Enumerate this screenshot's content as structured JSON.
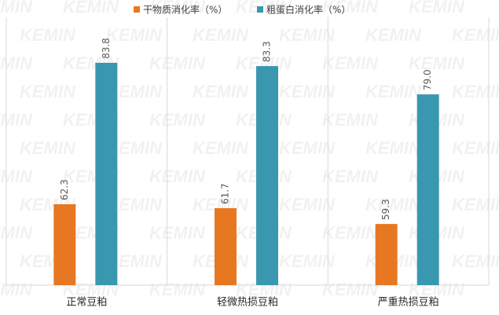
{
  "chart_data": {
    "type": "bar",
    "watermark": "KEMIN",
    "categories": [
      "正常豆粕",
      "轻微热损豆粕",
      "严重热损豆粕"
    ],
    "series": [
      {
        "name": "干物质消化率（%）",
        "color": "#e87722",
        "values": [
          62.3,
          61.7,
          59.3
        ],
        "value_labels": [
          "62.3",
          "61.7",
          "59.3"
        ]
      },
      {
        "name": "粗蛋白消化率（%）",
        "color": "#3a97b0",
        "values": [
          83.8,
          83.3,
          79.0
        ],
        "value_labels": [
          "83.8",
          "83.3",
          "79.0"
        ]
      }
    ],
    "ylim": [
      50,
      90
    ],
    "legend": "top",
    "category_dividers": true
  }
}
